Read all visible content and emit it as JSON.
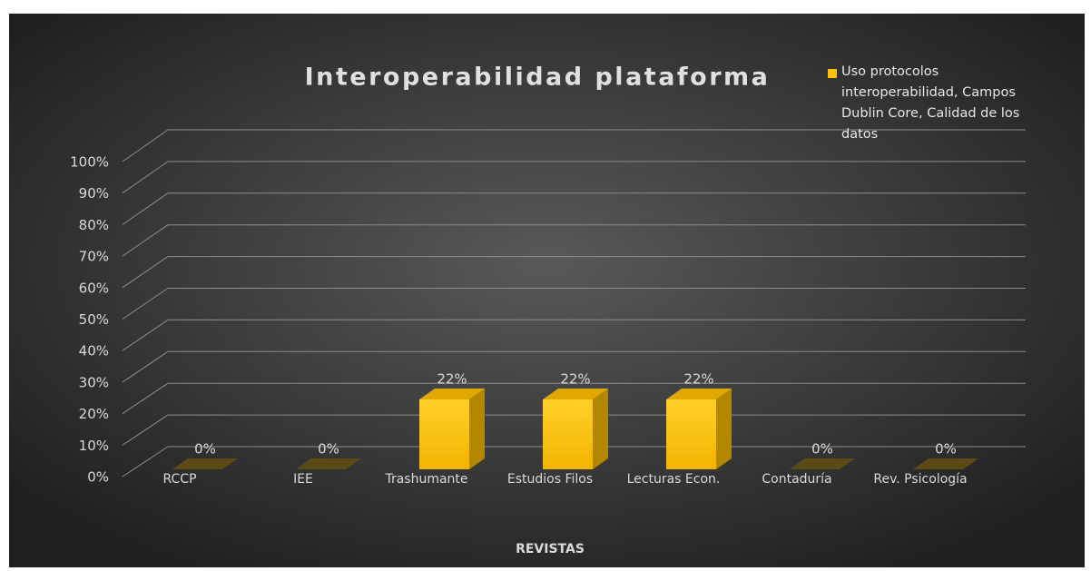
{
  "chart_data": {
    "type": "bar3d",
    "title": "Interoperabilidad plataforma",
    "x_label": "REVISTAS",
    "categories": [
      "RCCP",
      "IEE",
      "Trashumante",
      "Estudios Filos",
      "Lecturas Econ.",
      "Contaduría",
      "Rev. Psicología"
    ],
    "series": [
      {
        "name": "Uso protocolos interoperabilidad, Campos Dublin Core, Calidad de los datos",
        "color": "#ffc000",
        "values": [
          0,
          0,
          22,
          22,
          22,
          0,
          0
        ],
        "value_labels": [
          "0%",
          "0%",
          "22%",
          "22%",
          "22%",
          "0%",
          "0%"
        ]
      }
    ],
    "ylim": [
      0,
      100
    ],
    "yticks": [
      {
        "value": 0,
        "label": "0%"
      },
      {
        "value": 10,
        "label": "10%"
      },
      {
        "value": 20,
        "label": "20%"
      },
      {
        "value": 30,
        "label": "30%"
      },
      {
        "value": 40,
        "label": "40%"
      },
      {
        "value": 50,
        "label": "50%"
      },
      {
        "value": 60,
        "label": "60%"
      },
      {
        "value": 70,
        "label": "70%"
      },
      {
        "value": 80,
        "label": "80%"
      },
      {
        "value": 90,
        "label": "90%"
      },
      {
        "value": 100,
        "label": "100%"
      }
    ],
    "grid": true,
    "legend": "top-right"
  }
}
